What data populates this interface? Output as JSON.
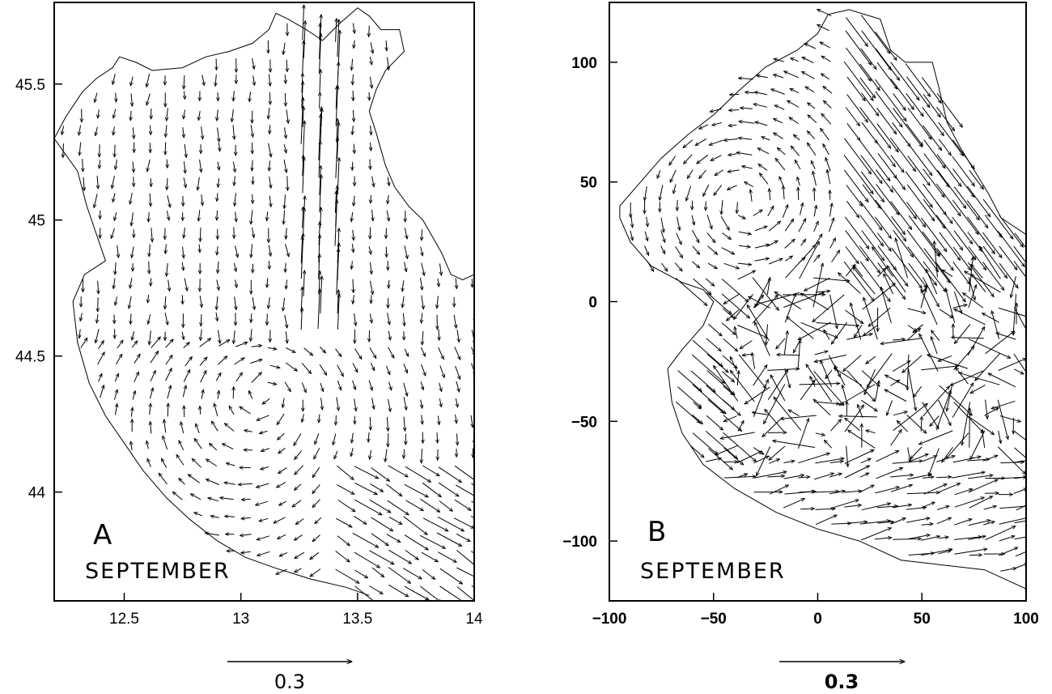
{
  "chart_data": [
    {
      "panel": "A",
      "type": "scatter",
      "kind": "current vector field (arrows)",
      "month_label": "SEPTEMBER",
      "panel_label": "A",
      "xlabel": "",
      "ylabel": "",
      "xlim": [
        12.2,
        14.0
      ],
      "ylim": [
        43.6,
        45.8
      ],
      "x_ticks": [
        "12.5",
        "13",
        "13.5",
        "14"
      ],
      "x_tick_values": [
        12.5,
        13.0,
        13.5,
        14.0
      ],
      "y_ticks": [
        "45.5",
        "45",
        "44.5",
        "44"
      ],
      "y_tick_values": [
        45.5,
        45.0,
        44.5,
        44.0
      ],
      "reference_vector_label": "0.3",
      "reference_vector_value": 0.3,
      "coastline": [
        [
          12.2,
          45.3
        ],
        [
          12.25,
          45.38
        ],
        [
          12.32,
          45.47
        ],
        [
          12.38,
          45.52
        ],
        [
          12.45,
          45.56
        ],
        [
          12.48,
          45.6
        ],
        [
          12.55,
          45.58
        ],
        [
          12.62,
          45.55
        ],
        [
          12.75,
          45.56
        ],
        [
          12.85,
          45.6
        ],
        [
          12.95,
          45.62
        ],
        [
          13.05,
          45.65
        ],
        [
          13.12,
          45.7
        ],
        [
          13.15,
          45.76
        ],
        [
          13.2,
          45.74
        ],
        [
          13.28,
          45.7
        ],
        [
          13.35,
          45.66
        ],
        [
          13.42,
          45.72
        ],
        [
          13.5,
          45.78
        ],
        [
          13.55,
          45.75
        ],
        [
          13.6,
          45.7
        ],
        [
          13.68,
          45.7
        ],
        [
          13.7,
          45.62
        ],
        [
          13.62,
          45.55
        ],
        [
          13.58,
          45.48
        ],
        [
          13.55,
          45.4
        ],
        [
          13.58,
          45.32
        ],
        [
          13.62,
          45.2
        ],
        [
          13.66,
          45.12
        ],
        [
          13.72,
          45.05
        ],
        [
          13.78,
          45.0
        ],
        [
          13.82,
          44.94
        ],
        [
          13.86,
          44.88
        ],
        [
          13.9,
          44.8
        ],
        [
          13.95,
          44.78
        ],
        [
          14.0,
          44.8
        ]
      ],
      "vectors_note": "unlabeled flow arrows; dense grid of current vectors over the basin"
    },
    {
      "panel": "B",
      "type": "scatter",
      "kind": "current vector field (arrows)",
      "month_label": "SEPTEMBER",
      "panel_label": "B",
      "xlabel": "",
      "ylabel": "",
      "xlim": [
        -100,
        100
      ],
      "ylim": [
        -125,
        125
      ],
      "x_ticks": [
        "−100",
        "−50",
        "0",
        "50",
        "100"
      ],
      "x_tick_values": [
        -100,
        -50,
        0,
        50,
        100
      ],
      "y_ticks": [
        "100",
        "50",
        "0",
        "−50",
        "−100"
      ],
      "y_tick_values": [
        100,
        50,
        0,
        -50,
        -100
      ],
      "reference_vector_label": "0.3",
      "reference_vector_value": 0.3,
      "boundary": [
        [
          -95,
          40
        ],
        [
          -85,
          50
        ],
        [
          -75,
          60
        ],
        [
          -62,
          70
        ],
        [
          -50,
          78
        ],
        [
          -38,
          88
        ],
        [
          -25,
          98
        ],
        [
          -10,
          105
        ],
        [
          0,
          112
        ],
        [
          5,
          120
        ],
        [
          15,
          122
        ],
        [
          30,
          118
        ],
        [
          35,
          105
        ],
        [
          42,
          100
        ],
        [
          55,
          100
        ],
        [
          58,
          90
        ],
        [
          62,
          75
        ],
        [
          68,
          65
        ],
        [
          75,
          55
        ],
        [
          82,
          45
        ],
        [
          88,
          35
        ],
        [
          100,
          28
        ],
        [
          100,
          -120
        ],
        [
          80,
          -112
        ],
        [
          60,
          -110
        ],
        [
          40,
          -108
        ],
        [
          20,
          -100
        ],
        [
          0,
          -95
        ],
        [
          -20,
          -88
        ],
        [
          -40,
          -78
        ],
        [
          -55,
          -68
        ],
        [
          -65,
          -55
        ],
        [
          -70,
          -42
        ],
        [
          -72,
          -28
        ],
        [
          -65,
          -20
        ],
        [
          -55,
          -10
        ],
        [
          -50,
          0
        ],
        [
          -55,
          5
        ],
        [
          -65,
          8
        ],
        [
          -80,
          15
        ],
        [
          -90,
          25
        ],
        [
          -95,
          35
        ]
      ]
    }
  ]
}
